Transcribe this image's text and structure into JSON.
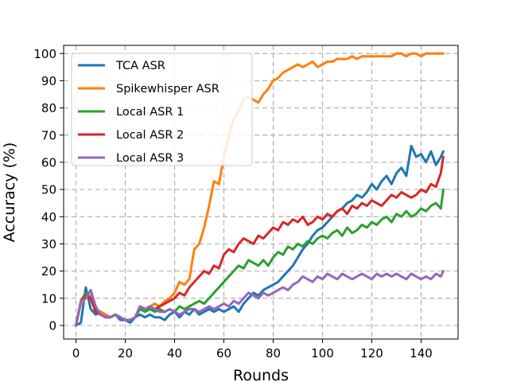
{
  "chart_data": {
    "type": "line",
    "title": "",
    "xlabel": "Rounds",
    "ylabel": "Accuracy (%)",
    "xlim": [
      -5,
      155
    ],
    "ylim": [
      -5,
      103
    ],
    "xticks": [
      0,
      20,
      40,
      60,
      80,
      100,
      120,
      140
    ],
    "yticks": [
      0,
      10,
      20,
      30,
      40,
      50,
      60,
      70,
      80,
      90,
      100
    ],
    "grid": true,
    "legend_position": "top-left",
    "series": [
      {
        "name": "TCA ASR",
        "color": "#1f77b4",
        "x": [
          0,
          2,
          4,
          6,
          8,
          10,
          12,
          14,
          16,
          18,
          20,
          22,
          24,
          26,
          28,
          30,
          32,
          34,
          36,
          38,
          40,
          42,
          44,
          46,
          48,
          50,
          52,
          54,
          56,
          58,
          60,
          62,
          64,
          66,
          68,
          70,
          72,
          74,
          76,
          78,
          80,
          82,
          84,
          86,
          88,
          90,
          92,
          94,
          96,
          98,
          100,
          102,
          104,
          106,
          108,
          110,
          112,
          114,
          116,
          118,
          120,
          122,
          124,
          126,
          128,
          130,
          132,
          134,
          136,
          138,
          140,
          142,
          144,
          146,
          148,
          149
        ],
        "values": [
          0,
          1,
          14,
          6,
          4,
          5,
          4,
          3,
          4,
          2,
          2,
          1,
          3,
          4,
          3,
          4,
          3,
          3,
          2,
          4,
          5,
          3,
          5,
          4,
          6,
          4,
          5,
          6,
          5,
          6,
          5,
          6,
          7,
          5,
          8,
          10,
          12,
          11,
          13,
          14,
          15,
          16,
          18,
          20,
          22,
          25,
          28,
          30,
          33,
          35,
          36,
          38,
          40,
          42,
          43,
          45,
          46,
          48,
          47,
          49,
          52,
          50,
          53,
          55,
          52,
          56,
          58,
          55,
          66,
          62,
          63,
          60,
          64,
          59,
          62,
          64
        ]
      },
      {
        "name": "Spikewhisper ASR",
        "color": "#ff7f0e",
        "x": [
          0,
          2,
          4,
          6,
          8,
          10,
          12,
          14,
          16,
          18,
          20,
          22,
          24,
          26,
          28,
          30,
          32,
          34,
          36,
          38,
          40,
          42,
          44,
          46,
          48,
          50,
          52,
          54,
          56,
          58,
          60,
          62,
          64,
          66,
          68,
          70,
          72,
          74,
          76,
          78,
          80,
          82,
          84,
          86,
          88,
          90,
          92,
          94,
          96,
          98,
          100,
          102,
          104,
          106,
          108,
          110,
          112,
          114,
          116,
          118,
          120,
          122,
          124,
          126,
          128,
          130,
          132,
          134,
          136,
          138,
          140,
          142,
          144,
          146,
          148,
          149
        ],
        "values": [
          0,
          8,
          10,
          11,
          6,
          5,
          4,
          3,
          4,
          3,
          2,
          2,
          3,
          7,
          6,
          7,
          8,
          7,
          9,
          10,
          12,
          16,
          15,
          17,
          28,
          30,
          36,
          44,
          53,
          52,
          62,
          70,
          76,
          79,
          83,
          84,
          83,
          82,
          85,
          87,
          90,
          91,
          93,
          94,
          95,
          96,
          95,
          96,
          97,
          95,
          96,
          97,
          97,
          98,
          98,
          98,
          99,
          98,
          99,
          99,
          99,
          99,
          99,
          99,
          99,
          100,
          100,
          99,
          100,
          100,
          99,
          100,
          100,
          100,
          100,
          100
        ]
      },
      {
        "name": "Local ASR 1",
        "color": "#2ca02c",
        "x": [
          0,
          2,
          4,
          6,
          8,
          10,
          12,
          14,
          16,
          18,
          20,
          22,
          24,
          26,
          28,
          30,
          32,
          34,
          36,
          38,
          40,
          42,
          44,
          46,
          48,
          50,
          52,
          54,
          56,
          58,
          60,
          62,
          64,
          66,
          68,
          70,
          72,
          74,
          76,
          78,
          80,
          82,
          84,
          86,
          88,
          90,
          92,
          94,
          96,
          98,
          100,
          102,
          104,
          106,
          108,
          110,
          112,
          114,
          116,
          118,
          120,
          122,
          124,
          126,
          128,
          130,
          132,
          134,
          136,
          138,
          140,
          142,
          144,
          146,
          148,
          149
        ],
        "values": [
          0,
          9,
          12,
          10,
          5,
          4,
          3,
          3,
          4,
          3,
          2,
          2,
          3,
          6,
          5,
          6,
          5,
          6,
          5,
          6,
          5,
          7,
          6,
          7,
          8,
          9,
          8,
          10,
          12,
          14,
          16,
          18,
          20,
          22,
          21,
          24,
          23,
          22,
          24,
          22,
          25,
          27,
          26,
          29,
          28,
          30,
          29,
          31,
          30,
          32,
          33,
          32,
          34,
          35,
          33,
          36,
          34,
          35,
          37,
          36,
          38,
          37,
          39,
          40,
          38,
          41,
          40,
          42,
          40,
          41,
          43,
          42,
          44,
          45,
          43,
          50
        ]
      },
      {
        "name": "Local ASR 2",
        "color": "#d62728",
        "x": [
          0,
          2,
          4,
          6,
          8,
          10,
          12,
          14,
          16,
          18,
          20,
          22,
          24,
          26,
          28,
          30,
          32,
          34,
          36,
          38,
          40,
          42,
          44,
          46,
          48,
          50,
          52,
          54,
          56,
          58,
          60,
          62,
          64,
          66,
          68,
          70,
          72,
          74,
          76,
          78,
          80,
          82,
          84,
          86,
          88,
          90,
          92,
          94,
          96,
          98,
          100,
          102,
          104,
          106,
          108,
          110,
          112,
          114,
          116,
          118,
          120,
          122,
          124,
          126,
          128,
          130,
          132,
          134,
          136,
          138,
          140,
          142,
          144,
          146,
          148,
          149
        ],
        "values": [
          0,
          9,
          11,
          10,
          5,
          4,
          3,
          3,
          4,
          3,
          2,
          2,
          3,
          7,
          6,
          7,
          6,
          7,
          8,
          9,
          10,
          12,
          11,
          14,
          16,
          18,
          20,
          19,
          22,
          21,
          26,
          28,
          27,
          30,
          32,
          31,
          30,
          33,
          32,
          34,
          36,
          35,
          38,
          37,
          39,
          38,
          40,
          37,
          38,
          40,
          39,
          41,
          40,
          42,
          43,
          41,
          44,
          43,
          45,
          44,
          46,
          45,
          44,
          46,
          48,
          47,
          49,
          48,
          47,
          48,
          50,
          49,
          52,
          51,
          56,
          62
        ]
      },
      {
        "name": "Local ASR 3",
        "color": "#9467bd",
        "x": [
          0,
          2,
          4,
          6,
          8,
          10,
          12,
          14,
          16,
          18,
          20,
          22,
          24,
          26,
          28,
          30,
          32,
          34,
          36,
          38,
          40,
          42,
          44,
          46,
          48,
          50,
          52,
          54,
          56,
          58,
          60,
          62,
          64,
          66,
          68,
          70,
          72,
          74,
          76,
          78,
          80,
          82,
          84,
          86,
          88,
          90,
          92,
          94,
          96,
          98,
          100,
          102,
          104,
          106,
          108,
          110,
          112,
          114,
          116,
          118,
          120,
          122,
          124,
          126,
          128,
          130,
          132,
          134,
          136,
          138,
          140,
          142,
          144,
          146,
          148,
          149
        ],
        "values": [
          0,
          9,
          10,
          13,
          7,
          4,
          3,
          3,
          4,
          3,
          2,
          2,
          3,
          7,
          6,
          7,
          6,
          5,
          5,
          6,
          5,
          4,
          5,
          6,
          6,
          5,
          6,
          7,
          6,
          7,
          8,
          7,
          9,
          8,
          10,
          12,
          11,
          10,
          12,
          11,
          12,
          13,
          14,
          13,
          15,
          16,
          18,
          17,
          16,
          18,
          17,
          19,
          18,
          17,
          19,
          18,
          17,
          18,
          19,
          18,
          17,
          19,
          18,
          19,
          18,
          19,
          18,
          17,
          19,
          18,
          17,
          18,
          17,
          19,
          18,
          20
        ]
      }
    ]
  }
}
